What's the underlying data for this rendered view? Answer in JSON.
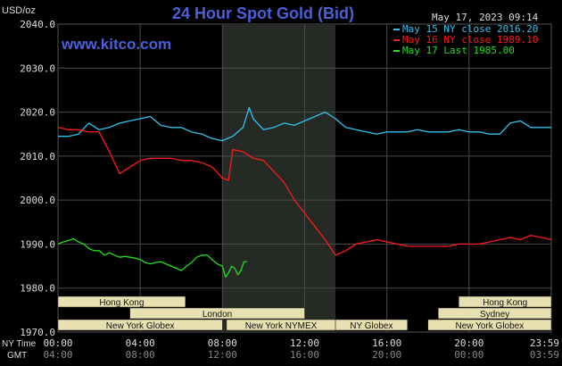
{
  "header": {
    "unit": "USD/oz",
    "title": "24 Hour Spot Gold (Bid)",
    "timestamp": "May 17, 2023 09:14",
    "website": "www.kitco.com"
  },
  "axis": {
    "ny_label": "NY Time",
    "gmt_label": "GMT",
    "ny_ticks": [
      "00:00",
      "04:00",
      "08:00",
      "12:00",
      "16:00",
      "20:00",
      "23:59"
    ],
    "gmt_ticks": [
      "04:00",
      "08:00",
      "12:00",
      "16:00",
      "20:00",
      "00:00",
      "03:59"
    ],
    "y_ticks": [
      "2040.0",
      "2030.0",
      "2020.0",
      "2010.0",
      "2000.0",
      "1990.0",
      "1980.0",
      "1970.0"
    ]
  },
  "legend": [
    {
      "label": "May 15 NY close 2016.20",
      "color": "#2ec5f0"
    },
    {
      "label": "May 16 NY close 1989.10",
      "color": "#ff1a1a"
    },
    {
      "label": "May 17 Last 1985.00",
      "color": "#1fe01f"
    }
  ],
  "sessions": [
    {
      "label": "Hong Kong",
      "start": 0,
      "end": 6.2,
      "row": 0
    },
    {
      "label": "London",
      "start": 3.5,
      "end": 12,
      "row": 1
    },
    {
      "label": "New York Globex",
      "start": 0,
      "end": 8,
      "row": 2
    },
    {
      "label": "New York NYMEX",
      "start": 8.2,
      "end": 13.5,
      "row": 2
    },
    {
      "label": "NY Globex",
      "start": 13.5,
      "end": 17,
      "row": 2
    },
    {
      "label": "Hong Kong",
      "start": 19.5,
      "end": 24,
      "row": 0
    },
    {
      "label": "Sydney",
      "start": 18.5,
      "end": 24,
      "row": 1
    },
    {
      "label": "New York Globex",
      "start": 18,
      "end": 24,
      "row": 2
    }
  ],
  "chart_data": {
    "type": "line",
    "title": "24 Hour Spot Gold (Bid)",
    "ylabel": "USD/oz",
    "xlabel": "NY Time",
    "x_unit": "hours (NY time)",
    "xlim": [
      0,
      24
    ],
    "ylim": [
      1970,
      2040
    ],
    "grid": true,
    "legend_position": "top-right",
    "highlight_band": [
      8.0,
      13.5
    ],
    "series": [
      {
        "name": "May 15 NY close 2016.20",
        "color": "#2ec5f0",
        "x": [
          0,
          0.5,
          1.0,
          1.5,
          2.0,
          2.5,
          3.0,
          3.5,
          4.0,
          4.5,
          5.0,
          5.5,
          6.0,
          6.5,
          7.0,
          7.5,
          8.0,
          8.5,
          9.0,
          9.3,
          9.5,
          10.0,
          10.5,
          11.0,
          11.5,
          12.0,
          12.5,
          13.0,
          13.5,
          14.0,
          14.5,
          15.0,
          15.5,
          16.0,
          16.5,
          17.0,
          17.5,
          18.0,
          18.5,
          19.0,
          19.5,
          20.0,
          20.5,
          21.0,
          21.5,
          22.0,
          22.5,
          23.0,
          23.5,
          23.99
        ],
        "y": [
          2014.5,
          2014.5,
          2015.0,
          2017.5,
          2016.0,
          2016.5,
          2017.5,
          2018.0,
          2018.5,
          2019.0,
          2017.0,
          2016.5,
          2016.5,
          2015.5,
          2015.0,
          2014.0,
          2013.5,
          2014.5,
          2016.5,
          2021.0,
          2018.5,
          2016.0,
          2016.5,
          2017.5,
          2017.0,
          2018.0,
          2019.0,
          2020.0,
          2018.5,
          2016.5,
          2016.0,
          2015.5,
          2015.0,
          2015.5,
          2015.5,
          2015.5,
          2016.0,
          2015.5,
          2015.5,
          2015.5,
          2016.0,
          2015.5,
          2015.5,
          2015.0,
          2015.0,
          2017.5,
          2018.0,
          2016.5,
          2016.5,
          2016.5
        ]
      },
      {
        "name": "May 16 NY close 1989.10",
        "color": "#ff1a1a",
        "x": [
          0,
          0.5,
          1.0,
          1.5,
          2.0,
          2.5,
          3.0,
          3.5,
          4.0,
          4.5,
          5.0,
          5.5,
          6.0,
          6.5,
          7.0,
          7.5,
          8.0,
          8.3,
          8.5,
          9.0,
          9.5,
          10.0,
          10.5,
          11.0,
          11.5,
          12.0,
          12.5,
          13.0,
          13.5,
          14.0,
          14.5,
          15.0,
          15.5,
          16.0,
          16.5,
          17.0,
          17.5,
          18.0,
          18.5,
          19.0,
          19.5,
          20.0,
          20.5,
          21.0,
          21.5,
          22.0,
          22.5,
          23.0,
          23.5,
          23.99
        ],
        "y": [
          2016.5,
          2016.0,
          2016.0,
          2015.5,
          2015.5,
          2011.0,
          2006.0,
          2007.5,
          2009.0,
          2009.5,
          2009.5,
          2009.5,
          2009.0,
          2009.0,
          2008.5,
          2007.5,
          2005.0,
          2004.5,
          2011.5,
          2011.0,
          2009.5,
          2009.0,
          2006.5,
          2004.0,
          2000.0,
          1997.0,
          1994.0,
          1991.0,
          1987.5,
          1988.5,
          1990.0,
          1990.5,
          1991.0,
          1990.5,
          1990.0,
          1989.5,
          1989.5,
          1989.5,
          1989.5,
          1989.5,
          1990.0,
          1990.0,
          1990.0,
          1990.5,
          1991.0,
          1991.5,
          1991.0,
          1992.0,
          1991.5,
          1991.0
        ]
      },
      {
        "name": "May 17 Last 1985.00",
        "color": "#1fe01f",
        "x": [
          0,
          0.25,
          0.5,
          0.75,
          1.0,
          1.25,
          1.5,
          1.75,
          2.0,
          2.25,
          2.5,
          2.75,
          3.0,
          3.25,
          3.5,
          3.75,
          4.0,
          4.25,
          4.5,
          4.75,
          5.0,
          5.25,
          5.5,
          5.75,
          6.0,
          6.25,
          6.5,
          6.75,
          7.0,
          7.25,
          7.5,
          7.75,
          8.0,
          8.15,
          8.3,
          8.45,
          8.6,
          8.75,
          8.9,
          9.05,
          9.2
        ],
        "y": [
          1990.0,
          1990.5,
          1990.8,
          1991.2,
          1990.5,
          1990.0,
          1989.0,
          1988.5,
          1988.5,
          1987.5,
          1988.0,
          1987.5,
          1987.0,
          1987.2,
          1987.0,
          1986.8,
          1986.5,
          1985.8,
          1985.5,
          1985.8,
          1986.0,
          1985.5,
          1985.0,
          1984.5,
          1984.0,
          1985.0,
          1985.8,
          1987.0,
          1987.5,
          1987.5,
          1986.5,
          1985.5,
          1985.0,
          1982.5,
          1983.5,
          1985.0,
          1984.5,
          1983.0,
          1984.0,
          1986.0,
          1986.0
        ]
      }
    ]
  }
}
